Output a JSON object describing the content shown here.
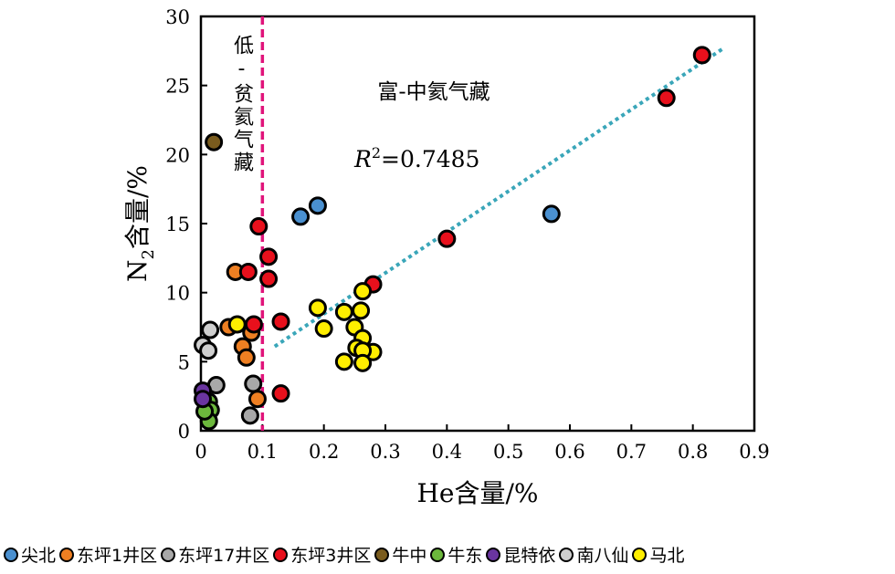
{
  "chart_data": {
    "type": "scatter",
    "xlabel": "He含量/%",
    "ylabel_main": "N",
    "ylabel_sub": "2",
    "ylabel_rest": "含量/%",
    "xlim": [
      0,
      0.9
    ],
    "ylim": [
      0,
      30
    ],
    "xticks": [
      "0",
      "0.1",
      "0.2",
      "0.3",
      "0.4",
      "0.5",
      "0.6",
      "0.7",
      "0.8",
      "0.9"
    ],
    "yticks": [
      "0",
      "5",
      "10",
      "15",
      "20",
      "25",
      "30"
    ],
    "grid": false,
    "legend_position": "bottom",
    "annotations": {
      "left_region": "低-贫氦气藏",
      "right_region": "富-中氦气藏",
      "r2_label": "R",
      "r2_sup": "2",
      "r2_value": "=0.7485"
    },
    "threshold_x": 0.1,
    "threshold_color": "#e0147a",
    "trendline": {
      "x": [
        0.12,
        0.85
      ],
      "y": [
        6.1,
        27.7
      ],
      "color": "#3aa6b9"
    },
    "series": [
      {
        "name": "尖北",
        "color": "#4a90d0",
        "x": [
          0.162,
          0.19,
          0.57
        ],
        "y": [
          15.5,
          16.3,
          15.7
        ]
      },
      {
        "name": "东坪1井区",
        "color": "#ee7f22",
        "x": [
          0.056,
          0.045,
          0.068,
          0.074,
          0.092,
          0.082
        ],
        "y": [
          11.5,
          7.5,
          6.1,
          5.3,
          2.3,
          7.1
        ]
      },
      {
        "name": "东坪17井区",
        "color": "#a8a8a8",
        "x": [
          0.085,
          0.08,
          0.025
        ],
        "y": [
          3.4,
          1.1,
          3.3
        ]
      },
      {
        "name": "东坪3井区",
        "color": "#e8101c",
        "x": [
          0.094,
          0.11,
          0.11,
          0.077,
          0.086,
          0.13,
          0.13,
          0.4,
          0.757,
          0.815,
          0.28
        ],
        "y": [
          14.8,
          12.6,
          11.0,
          11.5,
          7.7,
          7.9,
          2.7,
          13.9,
          24.1,
          27.2,
          10.6
        ]
      },
      {
        "name": "牛中",
        "color": "#7a5c1e",
        "x": [
          0.021
        ],
        "y": [
          20.9
        ]
      },
      {
        "name": "牛东",
        "color": "#6cb83c",
        "x": [
          0.013,
          0.016,
          0.013,
          0.006
        ],
        "y": [
          2.1,
          1.5,
          0.7,
          1.4
        ]
      },
      {
        "name": "昆特依",
        "color": "#6a35a0",
        "x": [
          0.003,
          0.003
        ],
        "y": [
          2.9,
          2.3
        ]
      },
      {
        "name": "南八仙",
        "color": "#cfcfcf",
        "x": [
          0.015,
          0.003,
          0.012
        ],
        "y": [
          7.3,
          6.2,
          5.8
        ]
      },
      {
        "name": "马北",
        "color": "#ffee00",
        "x": [
          0.059,
          0.19,
          0.2,
          0.233,
          0.26,
          0.263,
          0.25,
          0.263,
          0.253,
          0.28,
          0.263,
          0.233,
          0.263
        ],
        "y": [
          7.7,
          8.9,
          7.4,
          8.6,
          8.7,
          10.1,
          7.5,
          6.7,
          6.0,
          5.7,
          5.8,
          5.0,
          4.9
        ]
      }
    ]
  }
}
